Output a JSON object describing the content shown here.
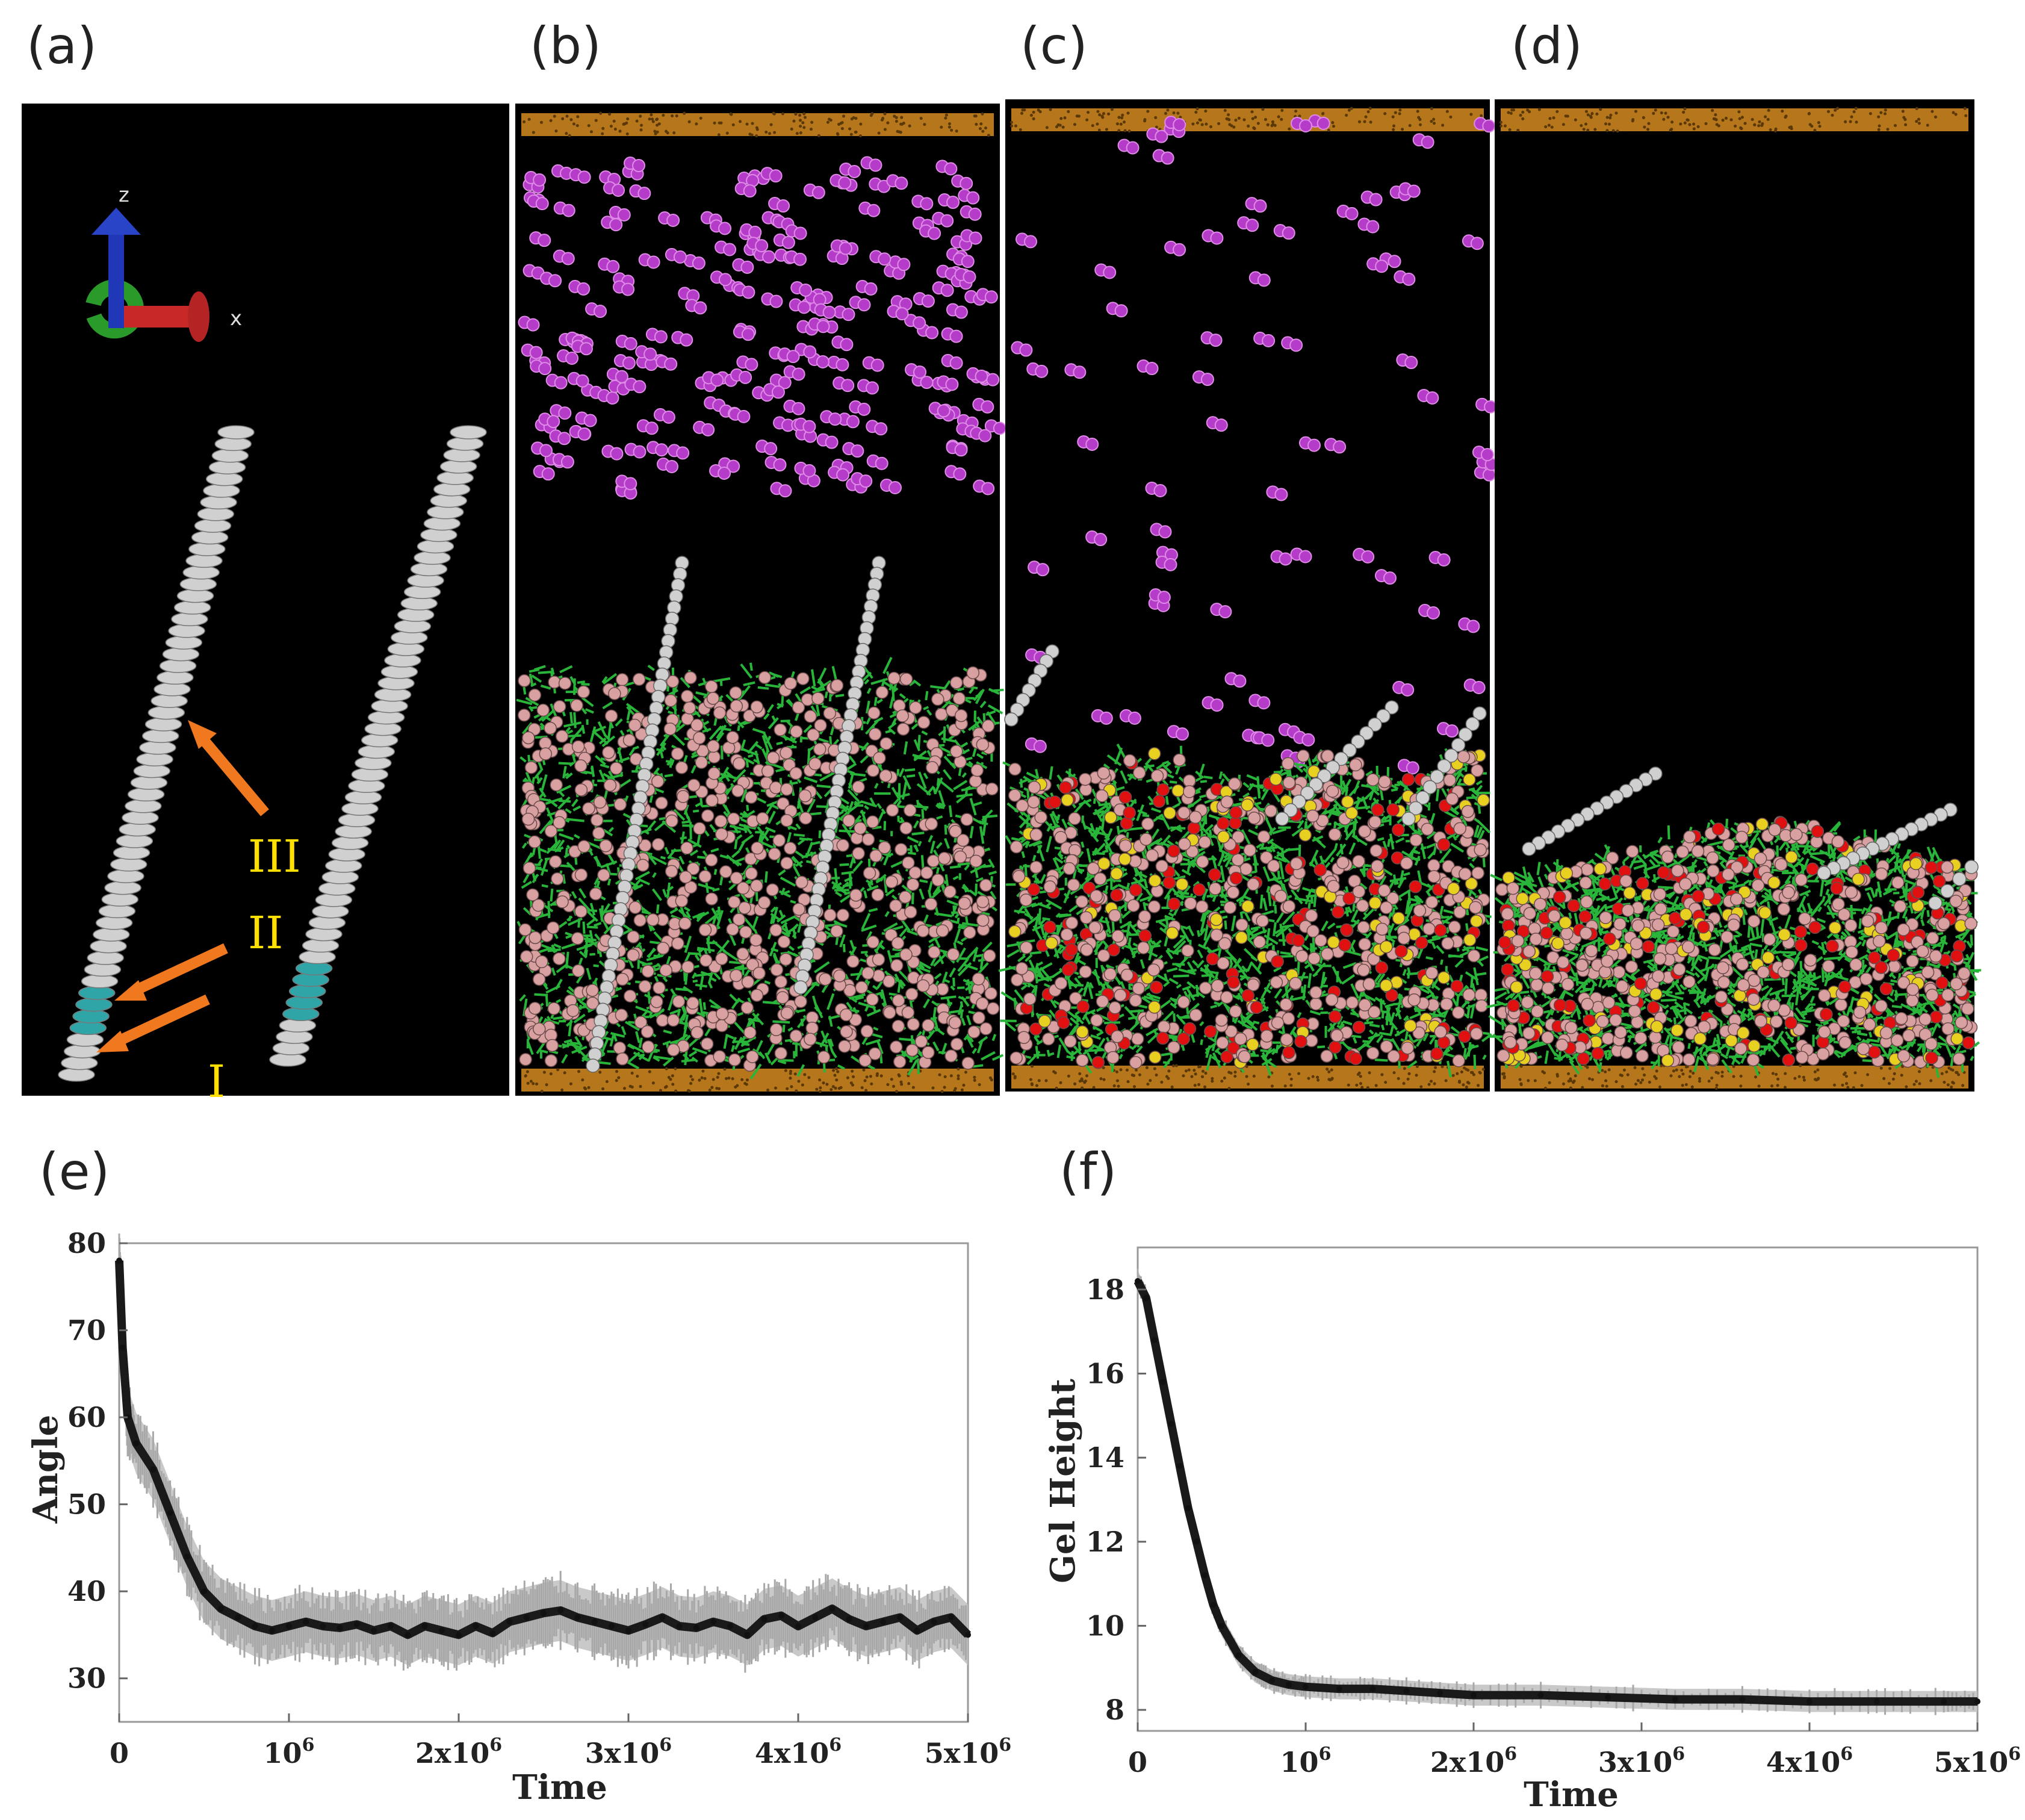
{
  "figure": {
    "panel_labels": [
      "(a)",
      "(b)",
      "(c)",
      "(d)",
      "(e)",
      "(f)"
    ],
    "panel_a": {
      "axis_labels": {
        "z": "z",
        "x": "x"
      },
      "segment_labels": [
        "III",
        "II",
        "I"
      ]
    }
  },
  "colors": {
    "background": "#000000",
    "wall": "#b5761c",
    "rod": "#d0d0d0",
    "rod_head": "#2fa5a8",
    "solvent": "#b43cc8",
    "gel_network": "#29b53a",
    "gel_bead": "#d8a0a0",
    "bead_red": "#e01010",
    "bead_yellow": "#e8d020",
    "arrow": "#f0781e",
    "label_yellow": "#ffe000",
    "axis_x": "#c82828",
    "axis_y": "#2a9a2a",
    "axis_z": "#2038b8"
  },
  "chart_data": [
    {
      "type": "line",
      "panel": "(e)",
      "title": "",
      "xlabel": "Time",
      "ylabel": "Angle",
      "xlim": [
        0,
        5000000
      ],
      "ylim": [
        25,
        80
      ],
      "x_ticks": [
        0,
        1000000,
        2000000,
        3000000,
        4000000,
        5000000
      ],
      "x_tick_labels": [
        {
          "base": "0",
          "exp": ""
        },
        {
          "base": "10",
          "exp": "6"
        },
        {
          "base": "2x10",
          "exp": "6"
        },
        {
          "base": "3x10",
          "exp": "6"
        },
        {
          "base": "4x10",
          "exp": "6"
        },
        {
          "base": "5x10",
          "exp": "6"
        }
      ],
      "y_ticks": [
        30,
        40,
        50,
        60,
        70,
        80
      ],
      "y_tick_labels": [
        "30",
        "40",
        "50",
        "60",
        "70",
        "80"
      ],
      "series": [
        {
          "name": "Angle",
          "error_band": 3.5,
          "points": [
            [
              0,
              78
            ],
            [
              20000,
              68
            ],
            [
              50000,
              60
            ],
            [
              100000,
              57
            ],
            [
              200000,
              54
            ],
            [
              300000,
              49
            ],
            [
              400000,
              44
            ],
            [
              500000,
              40
            ],
            [
              600000,
              38
            ],
            [
              700000,
              37
            ],
            [
              800000,
              36
            ],
            [
              900000,
              35.5
            ],
            [
              1000000,
              36
            ],
            [
              1100000,
              36.5
            ],
            [
              1200000,
              36
            ],
            [
              1300000,
              35.8
            ],
            [
              1400000,
              36.2
            ],
            [
              1500000,
              35.5
            ],
            [
              1600000,
              36
            ],
            [
              1700000,
              35
            ],
            [
              1800000,
              36
            ],
            [
              1900000,
              35.5
            ],
            [
              2000000,
              35
            ],
            [
              2100000,
              36
            ],
            [
              2200000,
              35.2
            ],
            [
              2300000,
              36.5
            ],
            [
              2400000,
              37
            ],
            [
              2500000,
              37.5
            ],
            [
              2600000,
              37.8
            ],
            [
              2700000,
              37
            ],
            [
              2800000,
              36.5
            ],
            [
              2900000,
              36
            ],
            [
              3000000,
              35.5
            ],
            [
              3100000,
              36.2
            ],
            [
              3200000,
              37
            ],
            [
              3300000,
              36
            ],
            [
              3400000,
              35.8
            ],
            [
              3500000,
              36.5
            ],
            [
              3600000,
              36
            ],
            [
              3700000,
              35
            ],
            [
              3800000,
              36.8
            ],
            [
              3900000,
              37.2
            ],
            [
              4000000,
              36
            ],
            [
              4100000,
              37
            ],
            [
              4200000,
              38
            ],
            [
              4300000,
              36.8
            ],
            [
              4400000,
              36
            ],
            [
              4500000,
              36.5
            ],
            [
              4600000,
              37
            ],
            [
              4700000,
              35.5
            ],
            [
              4800000,
              36.5
            ],
            [
              4900000,
              37
            ],
            [
              5000000,
              35
            ]
          ]
        }
      ]
    },
    {
      "type": "line",
      "panel": "(f)",
      "title": "",
      "xlabel": "Time",
      "ylabel": "Gel Height",
      "xlim": [
        0,
        5000000
      ],
      "ylim": [
        7.5,
        19
      ],
      "x_ticks": [
        0,
        1000000,
        2000000,
        3000000,
        4000000,
        5000000
      ],
      "x_tick_labels": [
        {
          "base": "0",
          "exp": ""
        },
        {
          "base": "10",
          "exp": "6"
        },
        {
          "base": "2x10",
          "exp": "6"
        },
        {
          "base": "3x10",
          "exp": "6"
        },
        {
          "base": "4x10",
          "exp": "6"
        },
        {
          "base": "5x10",
          "exp": "6"
        }
      ],
      "y_ticks": [
        8,
        10,
        12,
        14,
        16,
        18
      ],
      "y_tick_labels": [
        "8",
        "10",
        "12",
        "14",
        "16",
        "18"
      ],
      "series": [
        {
          "name": "Gel Height",
          "error_band": 0.25,
          "points": [
            [
              0,
              18.2
            ],
            [
              50000,
              17.8
            ],
            [
              100000,
              16.8
            ],
            [
              150000,
              15.8
            ],
            [
              200000,
              14.8
            ],
            [
              250000,
              13.8
            ],
            [
              300000,
              12.8
            ],
            [
              350000,
              12
            ],
            [
              400000,
              11.2
            ],
            [
              450000,
              10.5
            ],
            [
              500000,
              10
            ],
            [
              600000,
              9.3
            ],
            [
              700000,
              8.9
            ],
            [
              800000,
              8.7
            ],
            [
              900000,
              8.6
            ],
            [
              1000000,
              8.55
            ],
            [
              1200000,
              8.5
            ],
            [
              1400000,
              8.5
            ],
            [
              1600000,
              8.45
            ],
            [
              1800000,
              8.4
            ],
            [
              2000000,
              8.35
            ],
            [
              2400000,
              8.35
            ],
            [
              2800000,
              8.3
            ],
            [
              3200000,
              8.25
            ],
            [
              3600000,
              8.25
            ],
            [
              4000000,
              8.2
            ],
            [
              4400000,
              8.2
            ],
            [
              4800000,
              8.2
            ],
            [
              5000000,
              8.2
            ]
          ]
        }
      ]
    }
  ]
}
